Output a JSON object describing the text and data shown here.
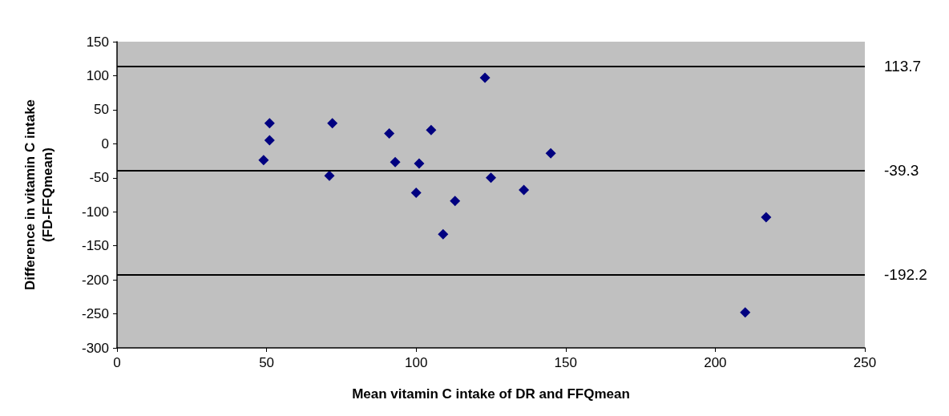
{
  "chart_data": {
    "type": "scatter",
    "xlabel": "Mean vitamin C intake of DR and FFQmean",
    "ylabel": "Difference in vitamin C intake\n(FD-FFQmean)",
    "x": [
      51,
      51,
      49,
      72,
      71,
      91,
      93,
      100,
      101,
      105,
      109,
      113,
      123,
      125,
      136,
      145,
      210,
      217
    ],
    "values": [
      30,
      5,
      -24,
      30,
      -47,
      15,
      -27,
      -72,
      -29,
      20,
      -133,
      -84,
      97,
      -50,
      -68,
      -14,
      -248,
      -108
    ],
    "color": "#000080",
    "marker": "diamond",
    "xlim": [
      0,
      250
    ],
    "xticks": [
      0,
      50,
      100,
      150,
      200,
      250
    ],
    "ylim": [
      -300,
      150
    ],
    "yticks": [
      -300,
      -250,
      -200,
      -150,
      -100,
      -50,
      0,
      50,
      100,
      150
    ],
    "grid": false,
    "ref_lines": [
      {
        "axis": "y",
        "value": 113.7,
        "label": "113.7",
        "color": "#000000"
      },
      {
        "axis": "y",
        "value": -39.3,
        "label": "-39.3",
        "color": "#000000"
      },
      {
        "axis": "y",
        "value": -192.2,
        "label": "-192.2",
        "color": "#000000"
      }
    ]
  }
}
